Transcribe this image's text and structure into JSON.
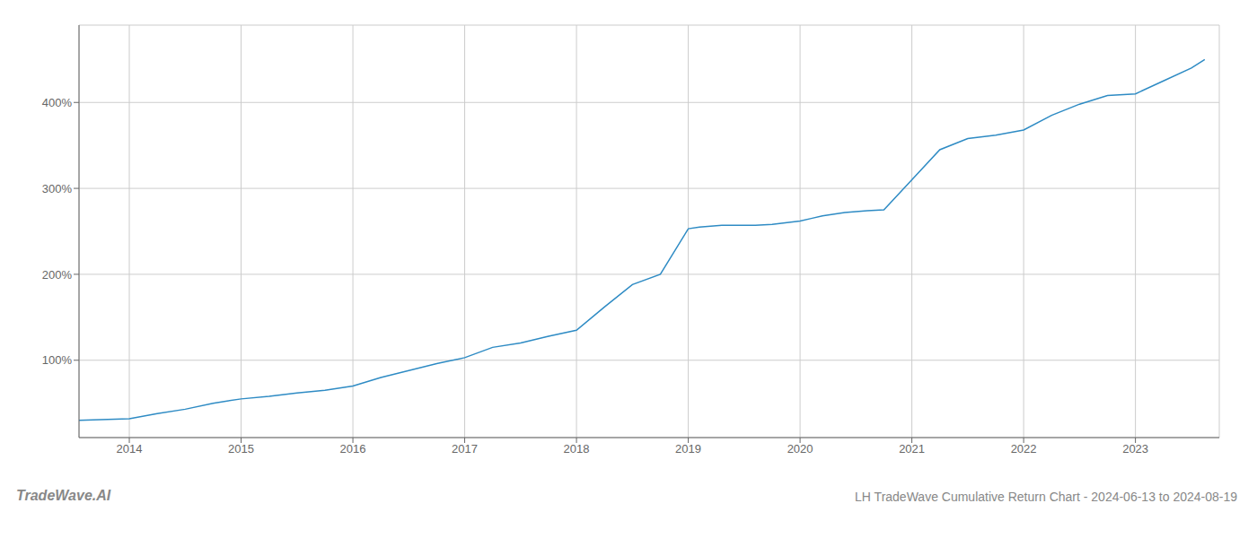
{
  "chart_data": {
    "type": "line",
    "title": "LH TradeWave Cumulative Return Chart - 2024-06-13 to 2024-08-19",
    "annotations": [
      "TradeWave.AI"
    ],
    "color": "#2e8bc4",
    "grid": true,
    "x": [
      2013.55,
      2014.0,
      2014.25,
      2014.5,
      2014.75,
      2015.0,
      2015.25,
      2015.5,
      2015.75,
      2016.0,
      2016.25,
      2016.5,
      2016.75,
      2017.0,
      2017.25,
      2017.5,
      2017.75,
      2018.0,
      2018.25,
      2018.5,
      2018.75,
      2019.0,
      2019.1,
      2019.2,
      2019.3,
      2019.4,
      2019.5,
      2019.6,
      2019.75,
      2020.0,
      2020.1,
      2020.2,
      2020.4,
      2020.6,
      2020.75,
      2021.0,
      2021.25,
      2021.5,
      2021.75,
      2022.0,
      2022.25,
      2022.5,
      2022.75,
      2023.0,
      2023.25,
      2023.5,
      2023.62
    ],
    "values": [
      30,
      32,
      38,
      43,
      50,
      55,
      58,
      62,
      65,
      70,
      80,
      88,
      96,
      103,
      115,
      120,
      128,
      135,
      162,
      188,
      200,
      253,
      255,
      256,
      257,
      257,
      257,
      257,
      258,
      262,
      265,
      268,
      272,
      274,
      275,
      310,
      345,
      358,
      362,
      368,
      385,
      398,
      408,
      410,
      425,
      440,
      450
    ],
    "xlim": [
      2013.55,
      2023.75
    ],
    "xticks": [
      2014,
      2015,
      2016,
      2017,
      2018,
      2019,
      2020,
      2021,
      2022,
      2023
    ],
    "ylim": [
      10,
      490
    ],
    "yticks": [
      {
        "value": 100,
        "label": "100%"
      },
      {
        "value": 200,
        "label": "200%"
      },
      {
        "value": 300,
        "label": "300%"
      },
      {
        "value": 400,
        "label": "400%"
      }
    ]
  }
}
